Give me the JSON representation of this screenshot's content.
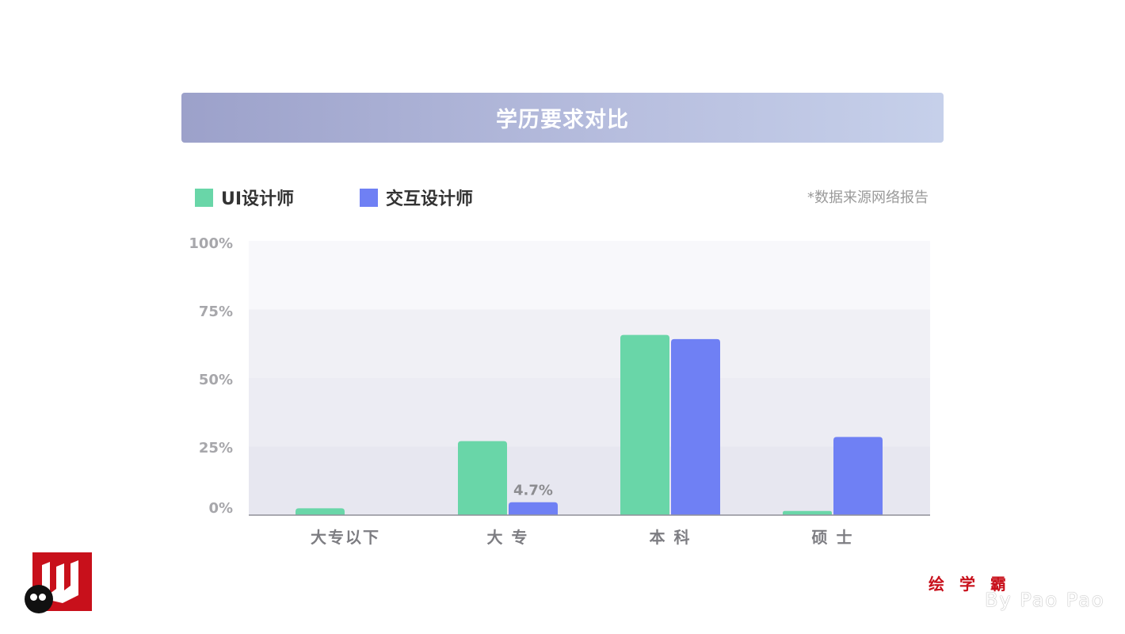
{
  "title": "学历要求对比",
  "legend": {
    "ui": "UI设计师",
    "ix": "交互设计师"
  },
  "source_note": "*数据来源网络报告",
  "colors": {
    "ui": "#69d6a8",
    "ix": "#6f80f4",
    "title_bar_start": "#9ca1ca",
    "title_bar_end": "#c6d0ea",
    "brand": "#c8101b"
  },
  "chart_data": {
    "type": "bar",
    "title": "学历要求对比",
    "categories": [
      "大专以下",
      "大 专",
      "本 科",
      "硕 士"
    ],
    "series": [
      {
        "name": "UI设计师",
        "values": [
          2.5,
          27.0,
          65.7,
          1.5
        ]
      },
      {
        "name": "交互设计师",
        "values": [
          0,
          4.7,
          64.2,
          28.5
        ]
      }
    ],
    "y_tick_labels": [
      "100%",
      "75%",
      "50%",
      "25%",
      "0%"
    ],
    "ylim": [
      0,
      100
    ],
    "data_labels": [
      {
        "series": 1,
        "category": 1,
        "text": "4.7%"
      }
    ],
    "legend_position": "top-left",
    "grid": true
  },
  "branding": {
    "logo_icon": "red-square-w-logo-icon",
    "brand_cn": "绘 学 霸",
    "brand_en": "By Pao Pao"
  }
}
